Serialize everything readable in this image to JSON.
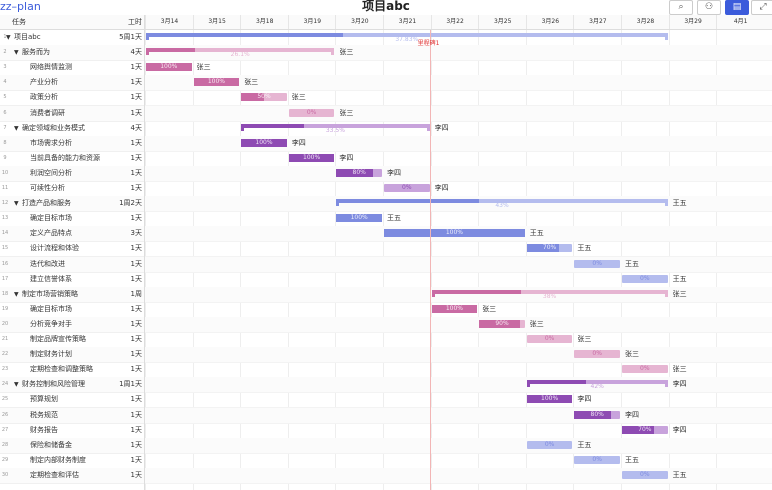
{
  "app": {
    "name": "zz–plan",
    "title": "项目abc"
  },
  "toolbar": {
    "buttons": [
      {
        "icon": "search-icon",
        "glyph": "⌕"
      },
      {
        "icon": "people-icon",
        "glyph": "👥"
      },
      {
        "icon": "view-icon",
        "glyph": "▤"
      },
      {
        "icon": "fullscreen-icon",
        "glyph": "⤢"
      }
    ]
  },
  "grid": {
    "task_header": "任务",
    "duration_header": "工时"
  },
  "timeline": {
    "days": [
      "3月14",
      "3月15",
      "3月18",
      "3月19",
      "3月20",
      "3月21",
      "3月22",
      "3月25",
      "3月26",
      "3月27",
      "3月28",
      "3月29",
      "4月1"
    ],
    "milestone_label": "里程碑1"
  },
  "colors": {
    "blue": "#7d8be0",
    "blue_light": "#b4bcee",
    "purple": "#8e4bb3",
    "purple_light": "#c8a3dc",
    "pink": "#c96aa3",
    "pink_light": "#e6b5d2"
  },
  "tasks": [
    {
      "num": "1",
      "name": "项目abc",
      "duration": "5周1天",
      "level": 0,
      "group": true,
      "progress": "37.83%"
    },
    {
      "num": "2",
      "name": "服务而为",
      "duration": "4天",
      "level": 1,
      "group": true,
      "progress": "26.1%",
      "assignee": "张三"
    },
    {
      "num": "3",
      "name": "网络舆情监测",
      "duration": "1天",
      "level": 2,
      "progress": "100%",
      "assignee": "张三"
    },
    {
      "num": "4",
      "name": "产业分析",
      "duration": "1天",
      "level": 2,
      "progress": "100%",
      "assignee": "张三"
    },
    {
      "num": "5",
      "name": "政策分析",
      "duration": "1天",
      "level": 2,
      "progress": "50%",
      "assignee": "张三"
    },
    {
      "num": "6",
      "name": "消费者调研",
      "duration": "1天",
      "level": 2,
      "progress": "0%",
      "assignee": "张三"
    },
    {
      "num": "7",
      "name": "确定领域和业务模式",
      "duration": "4天",
      "level": 1,
      "group": true,
      "progress": "33.5%",
      "assignee": "李四"
    },
    {
      "num": "8",
      "name": "市场需求分析",
      "duration": "1天",
      "level": 2,
      "progress": "100%",
      "assignee": "李四"
    },
    {
      "num": "9",
      "name": "当前具备的能力和资源",
      "duration": "1天",
      "level": 2,
      "progress": "100%",
      "assignee": "李四"
    },
    {
      "num": "10",
      "name": "利润空间分析",
      "duration": "1天",
      "level": 2,
      "progress": "80%",
      "assignee": "李四"
    },
    {
      "num": "11",
      "name": "可续性分析",
      "duration": "1天",
      "level": 2,
      "progress": "0%",
      "assignee": "李四"
    },
    {
      "num": "12",
      "name": "打造产品和服务",
      "duration": "1周2天",
      "level": 1,
      "group": true,
      "progress": "43%",
      "assignee": "王五"
    },
    {
      "num": "13",
      "name": "确定目标市场",
      "duration": "1天",
      "level": 2,
      "progress": "100%",
      "assignee": "王五"
    },
    {
      "num": "14",
      "name": "定义产品特点",
      "duration": "3天",
      "level": 2,
      "progress": "100%",
      "assignee": "王五"
    },
    {
      "num": "15",
      "name": "设计流程和体验",
      "duration": "1天",
      "level": 2,
      "progress": "70%",
      "assignee": "王五"
    },
    {
      "num": "16",
      "name": "迭代和改进",
      "duration": "1天",
      "level": 2,
      "progress": "0%",
      "assignee": "王五"
    },
    {
      "num": "17",
      "name": "建立信誉体系",
      "duration": "1天",
      "level": 2,
      "progress": "0%",
      "assignee": "王五"
    },
    {
      "num": "18",
      "name": "制定市场营销策略",
      "duration": "1周",
      "level": 1,
      "group": true,
      "progress": "38%",
      "assignee": "张三"
    },
    {
      "num": "19",
      "name": "确定目标市场",
      "duration": "1天",
      "level": 2,
      "progress": "100%",
      "assignee": "张三"
    },
    {
      "num": "20",
      "name": "分析竞争对手",
      "duration": "1天",
      "level": 2,
      "progress": "90%",
      "assignee": "张三"
    },
    {
      "num": "21",
      "name": "制定品牌宣传策略",
      "duration": "1天",
      "level": 2,
      "progress": "0%",
      "assignee": "张三"
    },
    {
      "num": "22",
      "name": "制定财务计划",
      "duration": "1天",
      "level": 2,
      "progress": "0%",
      "assignee": "张三"
    },
    {
      "num": "23",
      "name": "定期检查和调整策略",
      "duration": "1天",
      "level": 2,
      "progress": "0%",
      "assignee": "张三"
    },
    {
      "num": "24",
      "name": "财务控制和风险管理",
      "duration": "1周1天",
      "level": 1,
      "group": true,
      "progress": "42%",
      "assignee": "李四"
    },
    {
      "num": "25",
      "name": "预算规划",
      "duration": "1天",
      "level": 2,
      "progress": "100%",
      "assignee": "李四"
    },
    {
      "num": "26",
      "name": "税务规范",
      "duration": "1天",
      "level": 2,
      "progress": "80%",
      "assignee": "李四"
    },
    {
      "num": "27",
      "name": "财务报告",
      "duration": "1天",
      "level": 2,
      "progress": "70%",
      "assignee": "李四"
    },
    {
      "num": "28",
      "name": "保险和储备金",
      "duration": "1天",
      "level": 2,
      "progress": "0%",
      "assignee": "王五"
    },
    {
      "num": "29",
      "name": "制定内部财务制度",
      "duration": "1天",
      "level": 2,
      "progress": "0%",
      "assignee": "王五"
    },
    {
      "num": "30",
      "name": "定期检查和评估",
      "duration": "1天",
      "level": 2,
      "progress": "0%",
      "assignee": "王五"
    }
  ]
}
